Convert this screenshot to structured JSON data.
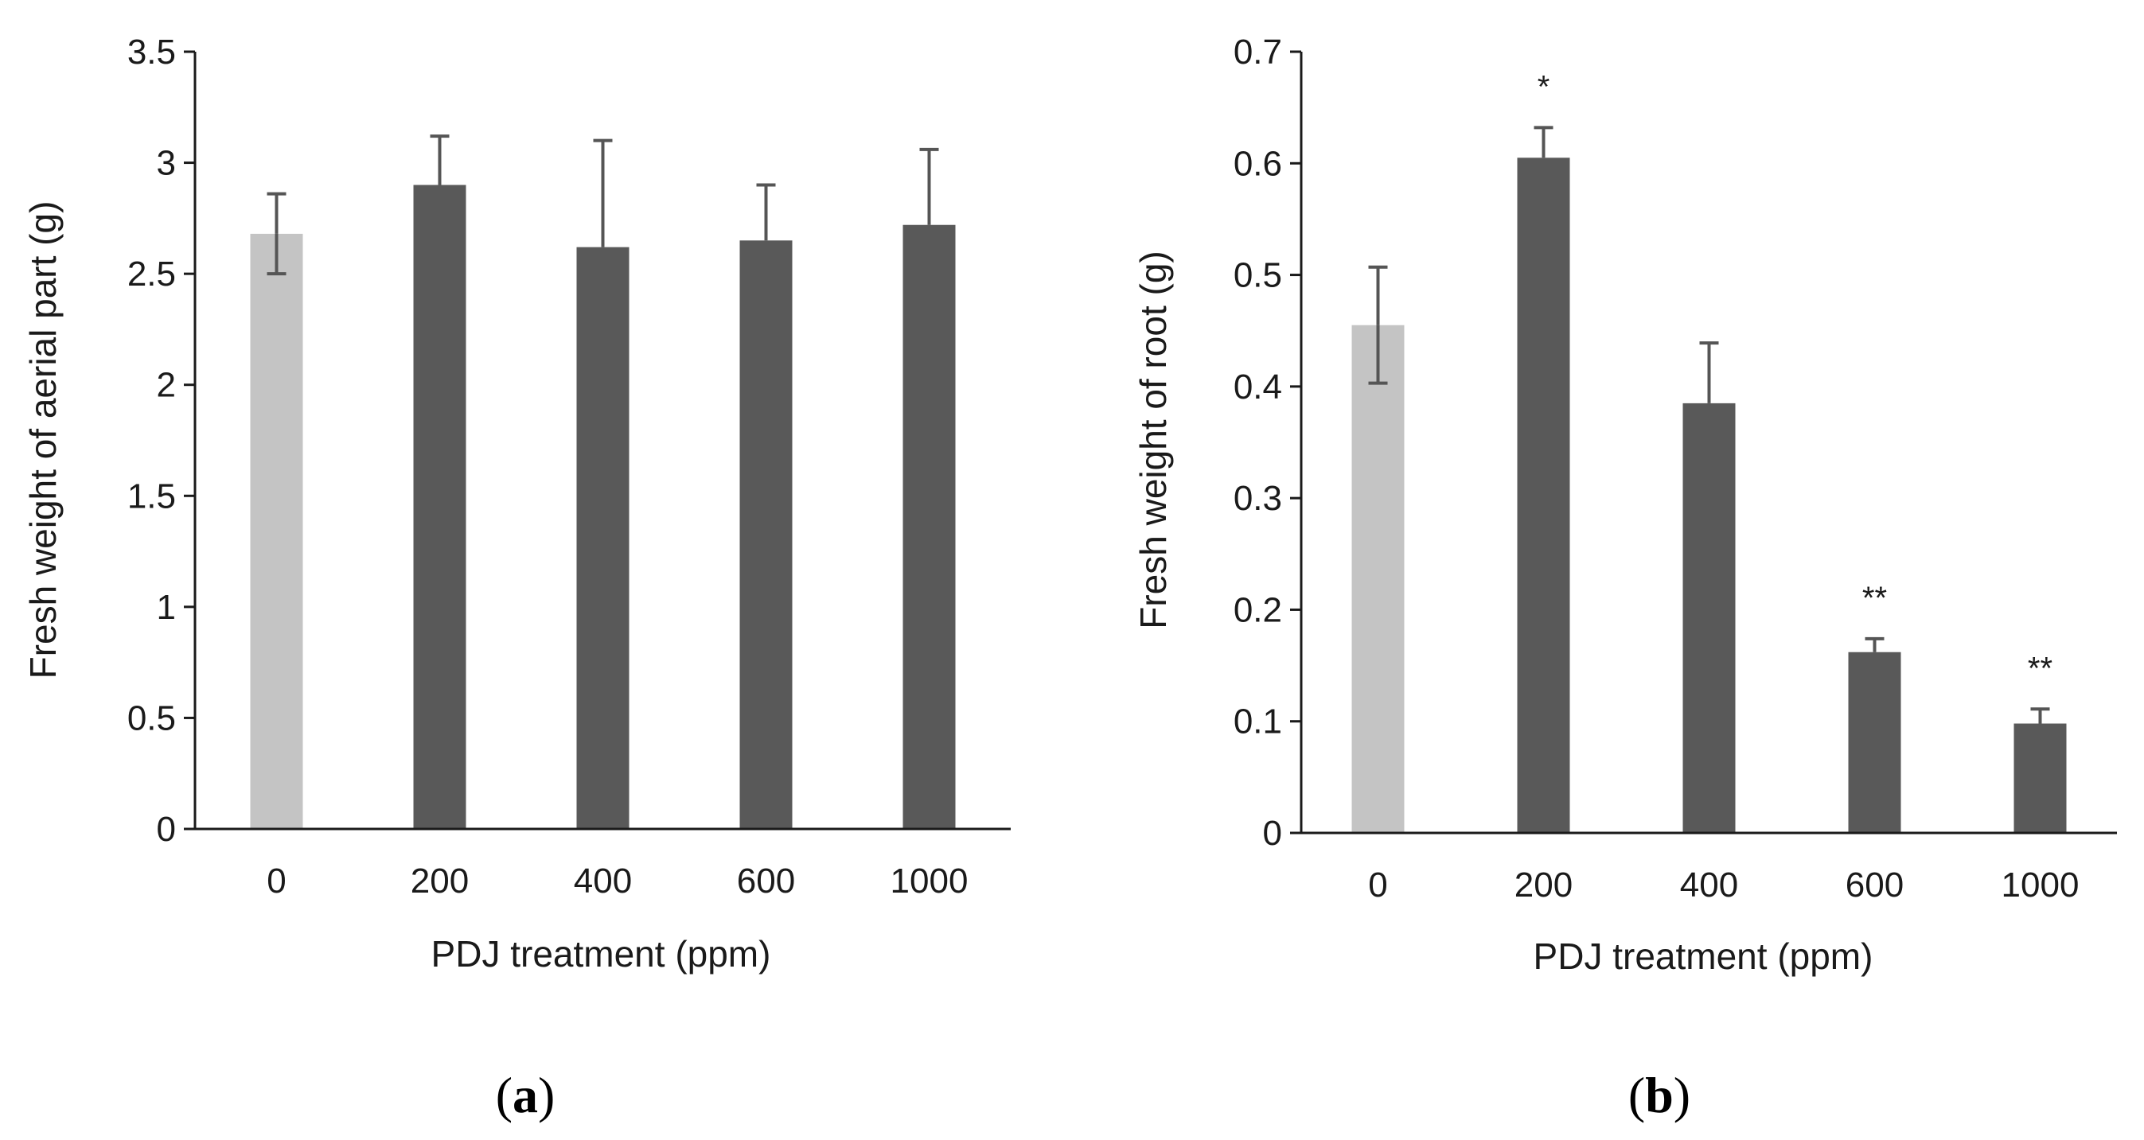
{
  "chart_data": [
    {
      "type": "bar",
      "panel": "a",
      "categories": [
        "0",
        "200",
        "400",
        "600",
        "1000"
      ],
      "values": [
        2.68,
        2.9,
        2.62,
        2.65,
        2.72
      ],
      "errors": [
        0.18,
        0.22,
        0.48,
        0.25,
        0.34
      ],
      "significance": [
        "",
        "",
        "",
        "",
        ""
      ],
      "yticks": [
        "0",
        "0.5",
        "1",
        "1.5",
        "2",
        "2.5",
        "3",
        "3.5"
      ],
      "ylim": [
        0,
        3.5
      ],
      "xlabel": "PDJ treatment (ppm)",
      "ylabel": "Fresh weight of aerial part (g)",
      "panel_label": {
        "open": "(",
        "letter": "a",
        "close": ")"
      },
      "colors": {
        "control": "#c4c4c4",
        "treatment": "#595959",
        "axis": "#1a1a1a",
        "error": "#555555"
      }
    },
    {
      "type": "bar",
      "panel": "b",
      "categories": [
        "0",
        "200",
        "400",
        "600",
        "1000"
      ],
      "values": [
        0.455,
        0.605,
        0.385,
        0.162,
        0.098
      ],
      "errors": [
        0.052,
        0.027,
        0.054,
        0.012,
        0.013
      ],
      "significance": [
        "",
        "*",
        "",
        "**",
        "**"
      ],
      "yticks": [
        "0",
        "0.1",
        "0.2",
        "0.3",
        "0.4",
        "0.5",
        "0.6",
        "0.7"
      ],
      "ylim": [
        0,
        0.7
      ],
      "xlabel": "PDJ treatment (ppm)",
      "ylabel": "Fresh weight of root (g)",
      "panel_label": {
        "open": "(",
        "letter": "b",
        "close": ")"
      },
      "colors": {
        "control": "#c4c4c4",
        "treatment": "#595959",
        "axis": "#1a1a1a",
        "error": "#555555"
      }
    }
  ]
}
